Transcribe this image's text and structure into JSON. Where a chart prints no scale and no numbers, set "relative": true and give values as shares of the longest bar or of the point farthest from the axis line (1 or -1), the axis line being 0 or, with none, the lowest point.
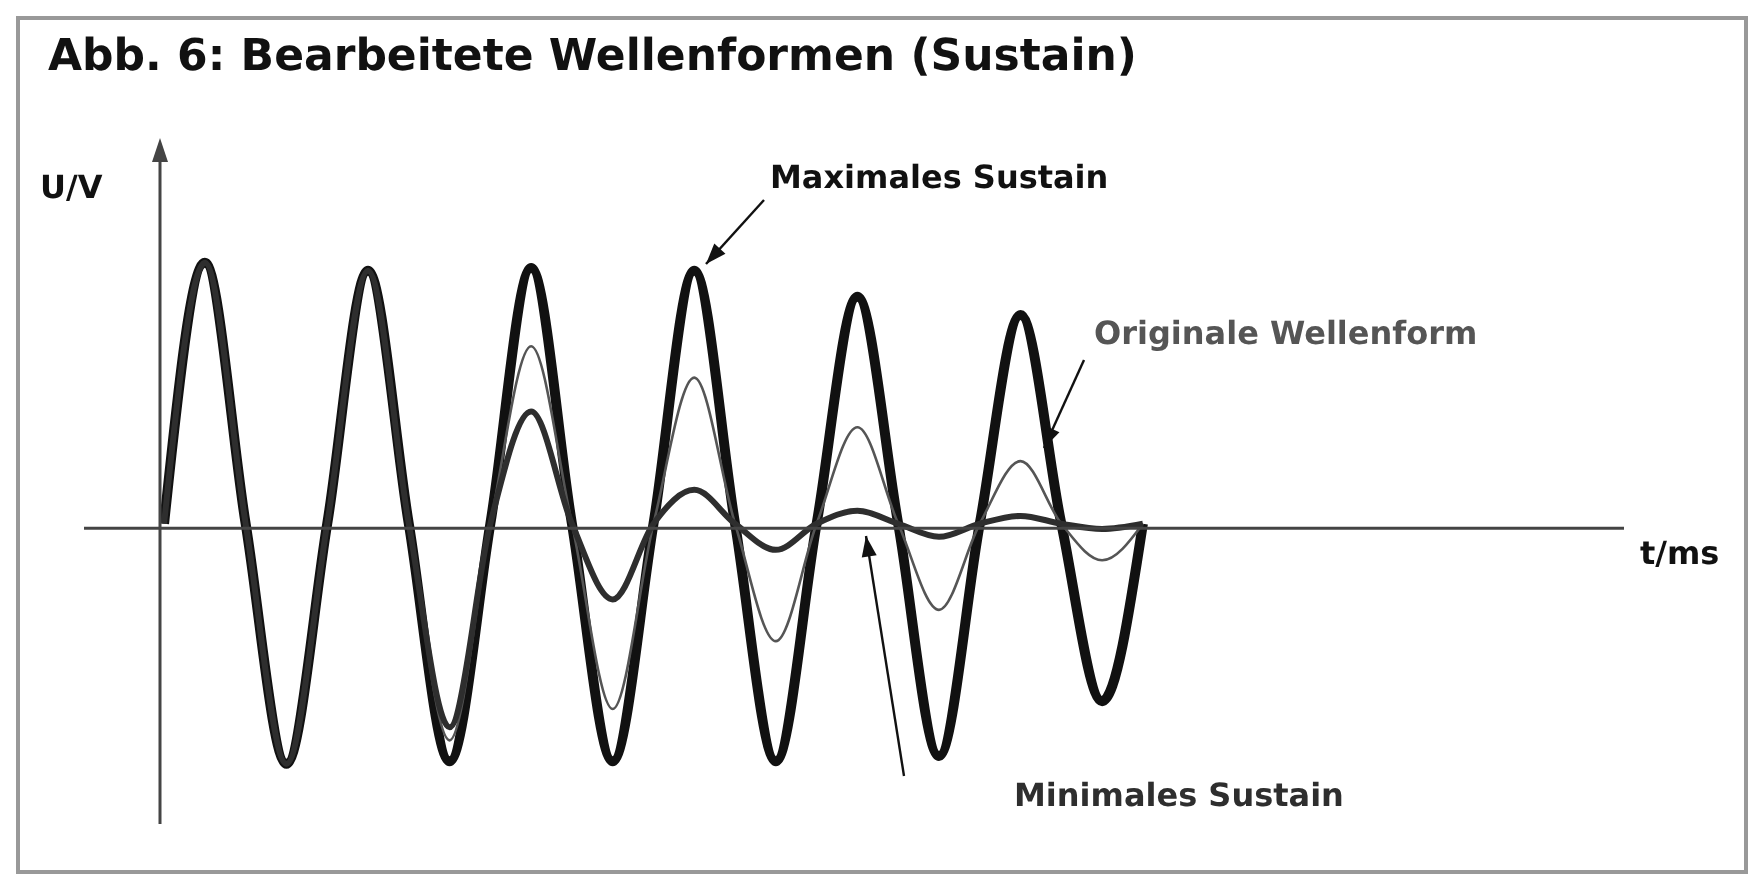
{
  "chart_data": {
    "type": "line",
    "title": "Abb. 6: Bearbeitete Wellenformen (Sustain)",
    "ylabel": "U/V",
    "xlabel": "t/ms",
    "relative": true,
    "grid": false,
    "categories": [
      null,
      null,
      null,
      null,
      null,
      null,
      null,
      null,
      null,
      null,
      null,
      null,
      null,
      null,
      null,
      null,
      null,
      null,
      null,
      null,
      null,
      null,
      null,
      null,
      null,
      null,
      null,
      null,
      null,
      null,
      null,
      null,
      null,
      null,
      null,
      null
    ],
    "series": [
      {
        "name": "Maximales Sustain",
        "color": "#111111",
        "values": [
          0,
          1,
          0,
          -0.92,
          0,
          0.97,
          0,
          -0.91,
          0,
          0.98,
          0,
          -0.91,
          0,
          0.97,
          0,
          -0.91,
          0,
          0.87,
          0,
          -0.89,
          0,
          0.8,
          0,
          -0.68,
          0,
          null,
          null,
          null,
          null,
          null,
          null,
          null,
          null,
          null,
          null,
          null
        ]
      },
      {
        "name": "Originale Wellenform",
        "color": "#555555",
        "values": [
          0,
          1,
          0,
          -0.92,
          0,
          0.97,
          0,
          -0.83,
          0,
          0.68,
          0,
          -0.71,
          0,
          0.56,
          0,
          -0.45,
          0,
          0.37,
          0,
          -0.33,
          0,
          0.24,
          0,
          -0.14,
          0,
          null,
          null,
          null,
          null,
          null,
          null,
          null,
          null,
          null,
          null,
          null
        ]
      },
      {
        "name": "Minimales Sustain",
        "color": "#2e2e2e",
        "values": [
          0,
          1,
          0,
          -0.92,
          0,
          0.97,
          0,
          -0.78,
          0,
          0.43,
          0,
          -0.29,
          0,
          0.13,
          0,
          -0.1,
          0,
          0.05,
          0,
          -0.05,
          0,
          0.03,
          0,
          -0.02,
          0,
          null,
          null,
          null,
          null,
          null,
          null,
          null,
          null,
          null,
          null,
          null
        ]
      }
    ]
  }
}
